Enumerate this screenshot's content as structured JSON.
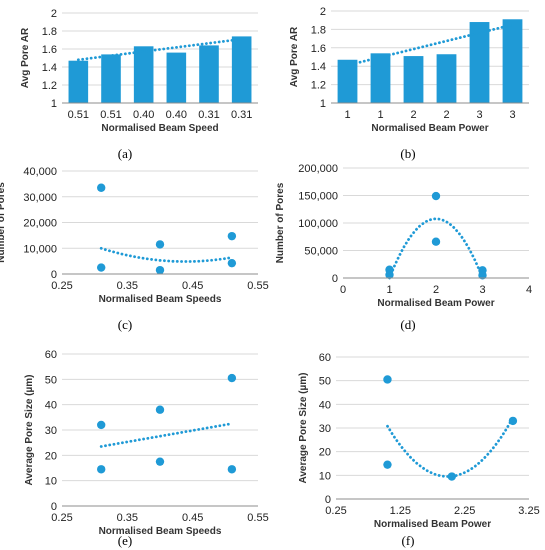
{
  "colors": {
    "series": "#1f9ad6",
    "axis": "#8c8c8c",
    "grid": "#d9d9d9",
    "trend": "#1f9ad6"
  },
  "chart_data": [
    {
      "panel_label": "(a)",
      "type": "bar",
      "grid": true,
      "categories": [
        "0.51",
        "0.51",
        "0.40",
        "0.40",
        "0.31",
        "0.31"
      ],
      "series": [
        {
          "values": [
            1.47,
            1.54,
            1.63,
            1.56,
            1.64,
            1.74
          ]
        }
      ],
      "trendline": {
        "type": "linear",
        "start": 1.48,
        "end": 1.71
      },
      "xlabel": "Normalised Beam Speed",
      "ylabel": "Avg Pore AR",
      "ylim": [
        1,
        2
      ],
      "yticks": [
        "1",
        "1.2",
        "1.4",
        "1.6",
        "1.8",
        "2"
      ]
    },
    {
      "panel_label": "(b)",
      "type": "bar",
      "grid": true,
      "categories": [
        "1",
        "1",
        "2",
        "2",
        "3",
        "3"
      ],
      "series": [
        {
          "values": [
            1.47,
            1.54,
            1.51,
            1.53,
            1.88,
            1.91
          ]
        }
      ],
      "trendline": {
        "type": "linear",
        "start": 1.41,
        "end": 1.85
      },
      "xlabel": "Normalised Beam Power",
      "ylabel": "Avg Pore AR",
      "ylim": [
        1,
        2
      ],
      "yticks": [
        "1",
        "1.2",
        "1.4",
        "1.6",
        "1.8",
        "2"
      ]
    },
    {
      "panel_label": "(c)",
      "type": "scatter",
      "grid": true,
      "points": [
        [
          0.31,
          33500
        ],
        [
          0.31,
          2500
        ],
        [
          0.4,
          11500
        ],
        [
          0.4,
          1500
        ],
        [
          0.51,
          14700
        ],
        [
          0.51,
          4200
        ]
      ],
      "trendline": {
        "type": "polynomial-2",
        "coeffs": [
          310000,
          -272000,
          64500
        ],
        "xrange": [
          0.31,
          0.51
        ]
      },
      "xlabel": "Normalised Beam Speeds",
      "ylabel": "Number of Pores",
      "xlim": [
        0.25,
        0.55
      ],
      "ylim": [
        0,
        40000
      ],
      "xticks": [
        "0.25",
        "0.35",
        "0.45",
        "0.55"
      ],
      "yticks": [
        "0",
        "10,000",
        "20,000",
        "30,000",
        "40,000"
      ]
    },
    {
      "panel_label": "(d)",
      "type": "scatter",
      "grid": true,
      "points": [
        [
          1,
          15000
        ],
        [
          1,
          6000
        ],
        [
          2,
          149000
        ],
        [
          2,
          66000
        ],
        [
          3,
          14000
        ],
        [
          3,
          5000
        ]
      ],
      "trendline": {
        "type": "polynomial-2",
        "coeffs": [
          -107500,
          430000,
          -322500
        ],
        "xrange": [
          1,
          3
        ]
      },
      "xlabel": "Normalised Beam Power",
      "ylabel": "Number of Pores",
      "xlim": [
        0,
        4
      ],
      "ylim": [
        0,
        200000
      ],
      "xticks": [
        "0",
        "1",
        "2",
        "3",
        "4"
      ],
      "yticks": [
        "0",
        "50,000",
        "100,000",
        "150,000",
        "200,000"
      ]
    },
    {
      "panel_label": "(e)",
      "type": "scatter",
      "grid": true,
      "points": [
        [
          0.31,
          32
        ],
        [
          0.31,
          14.5
        ],
        [
          0.4,
          38
        ],
        [
          0.4,
          17.5
        ],
        [
          0.51,
          50.5
        ],
        [
          0.51,
          14.5
        ]
      ],
      "trendline": {
        "type": "linear",
        "start": 23.5,
        "end": 32.5,
        "xrange": [
          0.31,
          0.51
        ]
      },
      "xlabel": "Normalised Beam Speeds",
      "ylabel": "Average Pore Size (µm)",
      "xlim": [
        0.25,
        0.55
      ],
      "ylim": [
        0,
        60
      ],
      "xticks": [
        "0.25",
        "0.35",
        "0.45",
        "0.55"
      ],
      "yticks": [
        "0",
        "10",
        "20",
        "30",
        "40",
        "50",
        "60"
      ]
    },
    {
      "panel_label": "(f)",
      "type": "scatter",
      "grid": true,
      "points": [
        [
          1.05,
          50.5
        ],
        [
          1.05,
          14.5
        ],
        [
          2.05,
          9.5
        ],
        [
          3.0,
          33
        ]
      ],
      "trendline": {
        "type": "polynomial-2",
        "coeffs": [
          24.2,
          -96.2,
          105.1
        ],
        "xrange": [
          1.05,
          3.0
        ]
      },
      "xlabel": "Normalised Beam Power",
      "ylabel": "Average Pore Size (µm)",
      "xlim": [
        0.25,
        3.25
      ],
      "ylim": [
        0,
        60
      ],
      "xticks": [
        "0.25",
        "1.25",
        "2.25",
        "3.25"
      ],
      "yticks": [
        "0",
        "10",
        "20",
        "30",
        "40",
        "50",
        "60"
      ]
    }
  ]
}
